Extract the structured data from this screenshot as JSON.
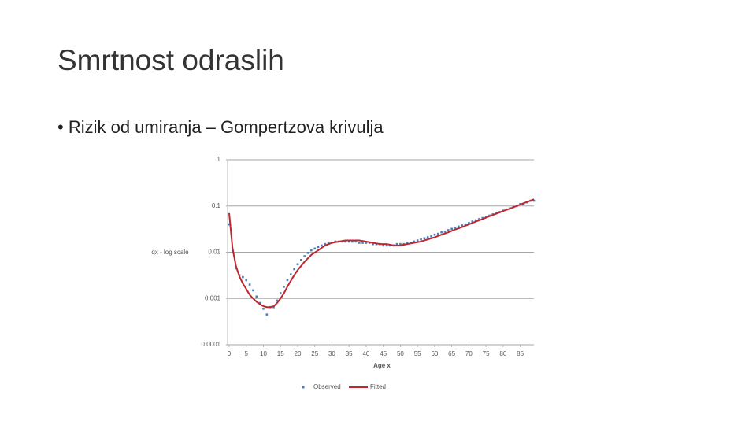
{
  "slide": {
    "title": "Smrtnost odraslih",
    "bullet": "Rizik od umiranja – Gompertzova krivulja"
  },
  "chart_data": {
    "type": "line",
    "y_label": "qx - log scale",
    "x_label": "Age x",
    "log_scale": true,
    "grid": true,
    "legend": "bottom",
    "xlim": [
      0,
      89
    ],
    "xticks": [
      0,
      5,
      10,
      15,
      20,
      25,
      30,
      35,
      40,
      45,
      50,
      55,
      60,
      65,
      70,
      75,
      80,
      85
    ],
    "ylim": [
      0.0001,
      1
    ],
    "yticks": [
      1,
      0.1,
      0.01,
      0.001,
      0.0001
    ],
    "series": [
      {
        "name": "Observed",
        "style": "markers",
        "color": "#4a7ebb",
        "x": [
          0,
          1,
          2,
          3,
          4,
          5,
          6,
          7,
          8,
          9,
          10,
          11,
          12,
          13,
          14,
          15,
          16,
          17,
          18,
          19,
          20,
          21,
          22,
          23,
          24,
          25,
          26,
          27,
          28,
          29,
          30,
          31,
          32,
          33,
          34,
          35,
          36,
          37,
          38,
          39,
          40,
          41,
          42,
          43,
          44,
          45,
          46,
          47,
          48,
          49,
          50,
          51,
          52,
          53,
          54,
          55,
          56,
          57,
          58,
          59,
          60,
          61,
          62,
          63,
          64,
          65,
          66,
          67,
          68,
          69,
          70,
          71,
          72,
          73,
          74,
          75,
          76,
          77,
          78,
          79,
          80,
          81,
          82,
          83,
          84,
          85,
          86,
          87,
          88,
          89
        ],
        "values": [
          0.04,
          0.011,
          0.0045,
          0.0032,
          0.0029,
          0.0025,
          0.002,
          0.0015,
          0.0011,
          0.0008,
          0.0006,
          0.00045,
          0.00065,
          0.00065,
          0.0009,
          0.0013,
          0.0018,
          0.0025,
          0.0033,
          0.0043,
          0.0055,
          0.0068,
          0.0082,
          0.0097,
          0.011,
          0.012,
          0.013,
          0.014,
          0.015,
          0.016,
          0.016,
          0.017,
          0.017,
          0.017,
          0.017,
          0.017,
          0.017,
          0.017,
          0.016,
          0.016,
          0.016,
          0.016,
          0.015,
          0.015,
          0.015,
          0.014,
          0.014,
          0.014,
          0.014,
          0.015,
          0.015,
          0.015,
          0.016,
          0.016,
          0.017,
          0.018,
          0.019,
          0.02,
          0.021,
          0.022,
          0.024,
          0.025,
          0.027,
          0.028,
          0.03,
          0.032,
          0.034,
          0.036,
          0.038,
          0.04,
          0.043,
          0.046,
          0.049,
          0.052,
          0.055,
          0.058,
          0.062,
          0.066,
          0.07,
          0.074,
          0.079,
          0.084,
          0.089,
          0.095,
          0.1,
          0.11,
          0.11,
          0.12,
          0.13,
          0.13
        ]
      },
      {
        "name": "Fitted",
        "style": "line",
        "color": "#c0272d",
        "x": [
          0,
          1,
          2,
          3,
          4,
          5,
          6,
          7,
          8,
          9,
          10,
          11,
          12,
          13,
          14,
          15,
          16,
          17,
          18,
          19,
          20,
          22,
          24,
          26,
          28,
          30,
          32,
          34,
          36,
          38,
          40,
          42,
          44,
          46,
          48,
          50,
          52,
          54,
          56,
          58,
          60,
          62,
          64,
          66,
          68,
          70,
          72,
          74,
          76,
          78,
          80,
          82,
          84,
          86,
          88,
          89
        ],
        "values": [
          0.07,
          0.012,
          0.005,
          0.003,
          0.0021,
          0.0016,
          0.0012,
          0.001,
          0.00085,
          0.00075,
          0.00068,
          0.00065,
          0.00065,
          0.00068,
          0.0008,
          0.001,
          0.0013,
          0.0018,
          0.0024,
          0.0032,
          0.0041,
          0.0062,
          0.0088,
          0.011,
          0.014,
          0.016,
          0.017,
          0.018,
          0.018,
          0.018,
          0.017,
          0.016,
          0.015,
          0.015,
          0.014,
          0.014,
          0.015,
          0.016,
          0.017,
          0.019,
          0.021,
          0.024,
          0.027,
          0.031,
          0.035,
          0.04,
          0.046,
          0.052,
          0.06,
          0.068,
          0.078,
          0.088,
          0.1,
          0.115,
          0.13,
          0.14
        ]
      }
    ]
  }
}
